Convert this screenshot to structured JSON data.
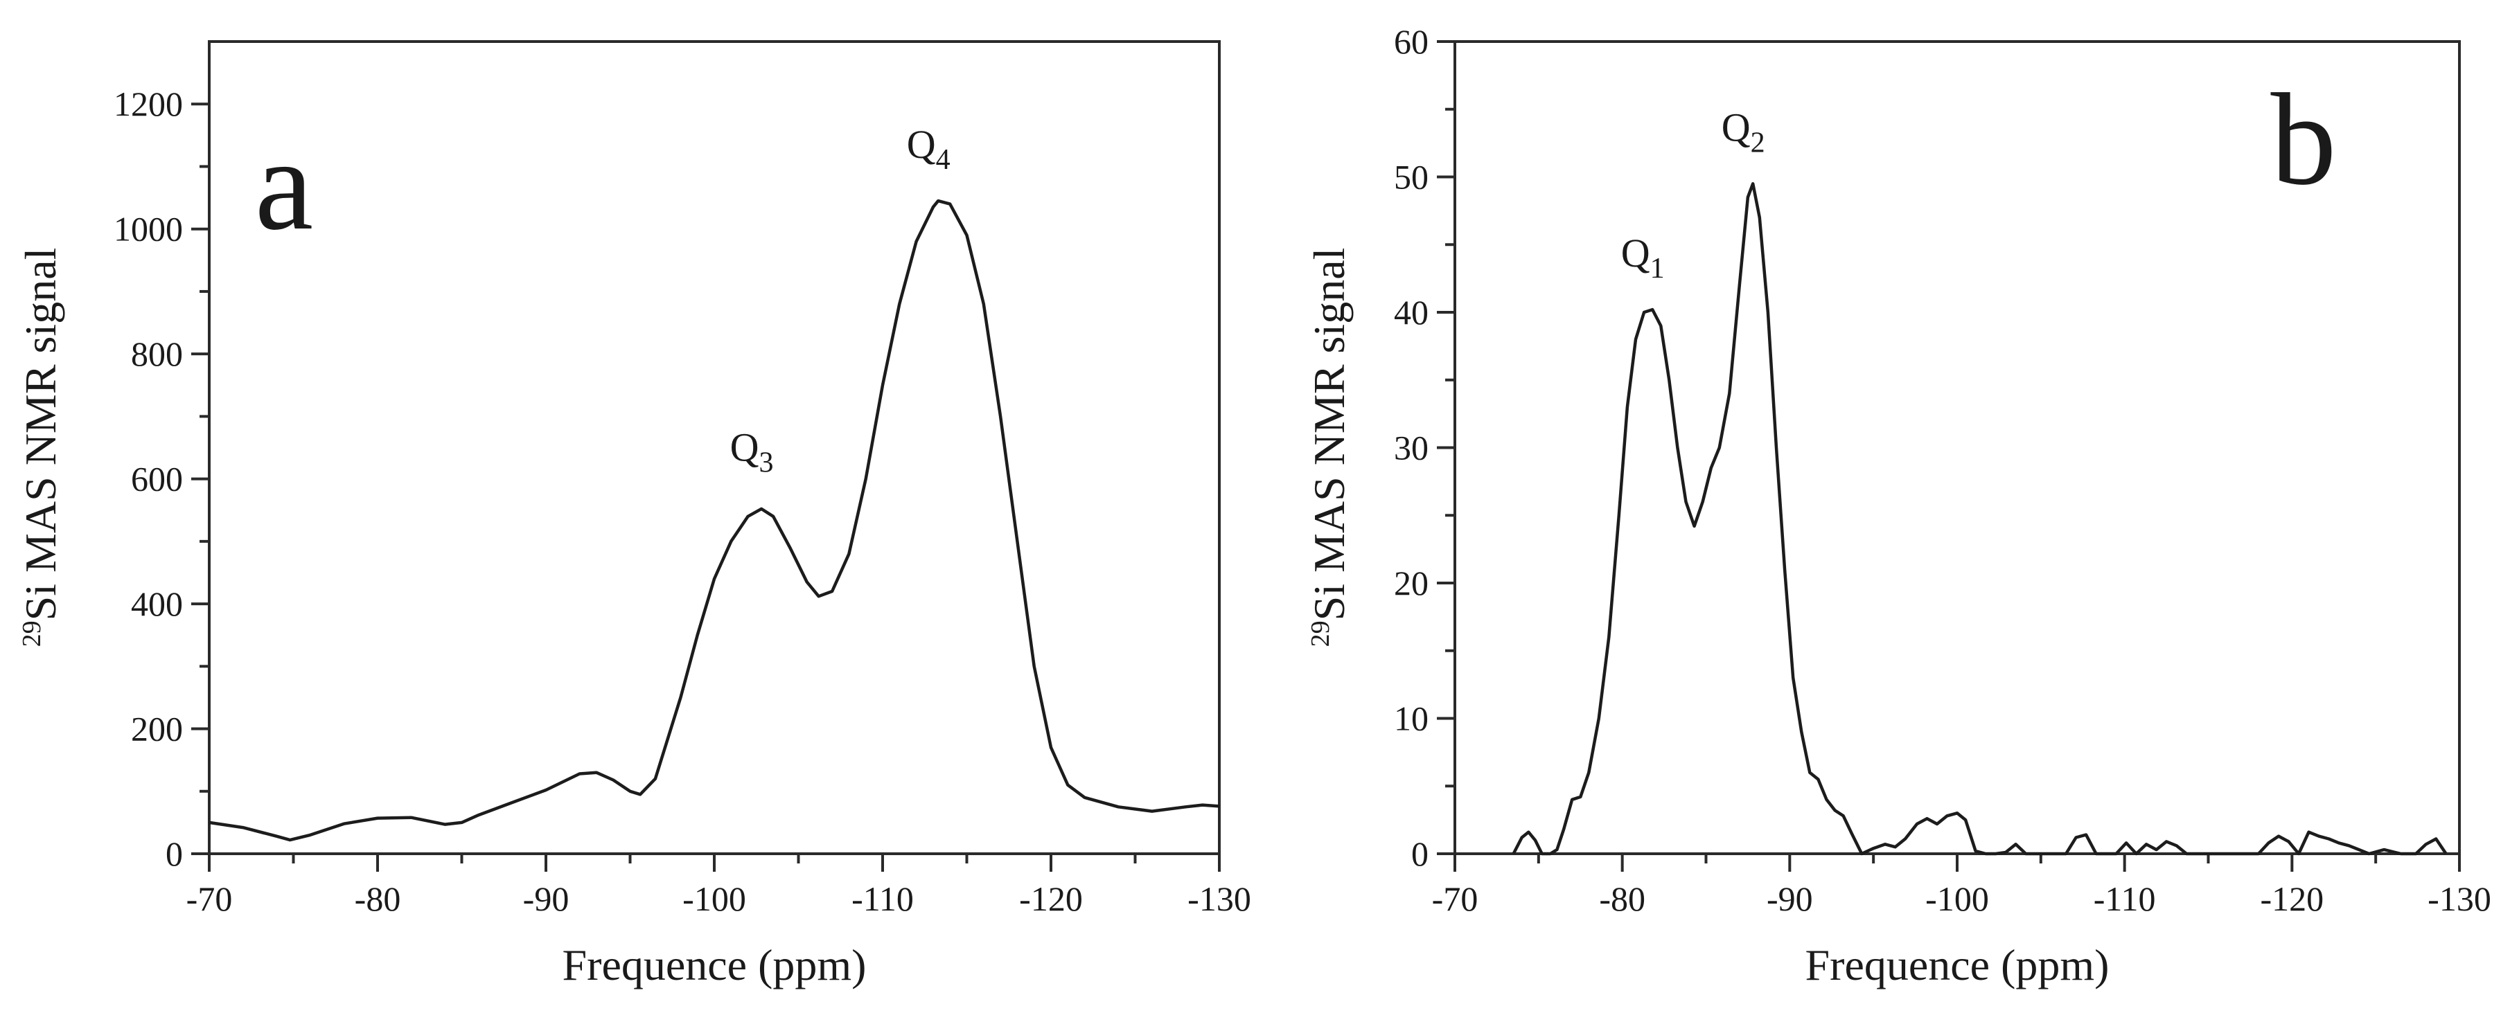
{
  "chart_data": [
    {
      "type": "line",
      "panel_label": "a",
      "xlabel": "Frequence (ppm)",
      "ylabel_sup": "29",
      "ylabel": "Si MAS NMR signal",
      "xlim": [
        -70,
        -130
      ],
      "ylim": [
        0,
        1300
      ],
      "x_ticks": [
        -70,
        -80,
        -90,
        -100,
        -110,
        -120,
        -130
      ],
      "x_tick_labels": [
        "-70",
        "-80",
        "-90",
        "-100",
        "-110",
        "-120",
        "-130"
      ],
      "y_ticks": [
        0,
        200,
        400,
        600,
        800,
        1000,
        1200
      ],
      "y_tick_labels": [
        "0",
        "200",
        "400",
        "600",
        "800",
        "1000",
        "1200"
      ],
      "annotations": [
        {
          "main": "Q",
          "sub": "3",
          "x": -102.8,
          "y": 560
        },
        {
          "main": "Q",
          "sub": "4",
          "x": -113.3,
          "y": 1045
        }
      ],
      "series": [
        {
          "name": "spectrum",
          "x": [
            -70,
            -72,
            -74,
            -74.8,
            -76,
            -78,
            -80,
            -82,
            -84,
            -85,
            -86,
            -88,
            -90,
            -92,
            -93,
            -94,
            -95,
            -95.6,
            -96.5,
            -98,
            -99,
            -100,
            -101,
            -102,
            -102.8,
            -103.5,
            -104.5,
            -105.5,
            -106.2,
            -107,
            -108,
            -109,
            -110,
            -111,
            -112,
            -113,
            -113.3,
            -114,
            -115,
            -116,
            -117,
            -118,
            -119,
            -120,
            -121,
            -122,
            -124,
            -126,
            -128,
            -129,
            -130
          ],
          "y": [
            50,
            42,
            28,
            22,
            30,
            48,
            57,
            58,
            47,
            50,
            62,
            82,
            102,
            128,
            130,
            118,
            100,
            95,
            120,
            250,
            350,
            440,
            500,
            540,
            552,
            540,
            490,
            435,
            412,
            420,
            480,
            600,
            750,
            880,
            980,
            1035,
            1045,
            1040,
            990,
            880,
            700,
            500,
            300,
            170,
            110,
            90,
            75,
            68,
            75,
            78,
            76
          ]
        }
      ]
    },
    {
      "type": "line",
      "panel_label": "b",
      "xlabel": "Frequence (ppm)",
      "ylabel_sup": "29",
      "ylabel": "Si MAS NMR signal",
      "xlim": [
        -70,
        -130
      ],
      "ylim": [
        0,
        60
      ],
      "x_ticks": [
        -70,
        -80,
        -90,
        -100,
        -110,
        -120,
        -130
      ],
      "x_tick_labels": [
        "-70",
        "-80",
        "-90",
        "-100",
        "-110",
        "-120",
        "-130"
      ],
      "y_ticks": [
        0,
        10,
        20,
        30,
        40,
        50,
        60
      ],
      "y_tick_labels": [
        "0",
        "10",
        "20",
        "30",
        "40",
        "50",
        "60"
      ],
      "annotations": [
        {
          "main": "Q",
          "sub": "1",
          "x": -81.8,
          "y": 40.2
        },
        {
          "main": "Q",
          "sub": "2",
          "x": -87.8,
          "y": 49.5
        }
      ],
      "series": [
        {
          "name": "spectrum",
          "x": [
            -73.5,
            -74,
            -74.4,
            -74.8,
            -75.2,
            -75.7,
            -76.1,
            -76.5,
            -77,
            -77.5,
            -78,
            -78.6,
            -79.2,
            -79.8,
            -80.3,
            -80.8,
            -81.3,
            -81.8,
            -82.3,
            -82.8,
            -83.3,
            -83.8,
            -84.3,
            -84.8,
            -85.3,
            -85.8,
            -86.4,
            -87,
            -87.5,
            -87.8,
            -88.2,
            -88.7,
            -89.2,
            -89.7,
            -90.2,
            -90.7,
            -91.2,
            -91.7,
            -92.2,
            -92.7,
            -93.2,
            -93.7,
            -94.3,
            -95,
            -95.7,
            -96.3,
            -96.9,
            -97.6,
            -98.2,
            -98.8,
            -99.4,
            -100,
            -100.5,
            -101.1,
            -101.7,
            -102.3,
            -102.9,
            -103.5,
            -104.1,
            -105.3,
            -106.5,
            -107.1,
            -107.7,
            -108.3,
            -109.5,
            -110.1,
            -110.7,
            -111.3,
            -111.9,
            -112.5,
            -113.1,
            -113.7,
            -114.3,
            -115,
            -118,
            -118.6,
            -119.2,
            -119.8,
            -120.4,
            -121,
            -121.6,
            -122.2,
            -122.8,
            -123.4,
            -124,
            -124.6,
            -125.5,
            -126.5,
            -127.4,
            -128,
            -128.6,
            -129.2
          ],
          "y": [
            0,
            1.2,
            1.6,
            1.0,
            0,
            0,
            0.3,
            1.8,
            4,
            4.2,
            6,
            10,
            16,
            25,
            33,
            38,
            40,
            40.2,
            39,
            35,
            30,
            26,
            24.2,
            26,
            28.5,
            30,
            34,
            42,
            48.5,
            49.5,
            47,
            40,
            30,
            21,
            13,
            9,
            6,
            5.5,
            4,
            3.2,
            2.8,
            1.5,
            0,
            0.4,
            0.7,
            0.5,
            1.1,
            2.2,
            2.6,
            2.2,
            2.8,
            3.0,
            2.5,
            0.2,
            0,
            0,
            0.1,
            0.7,
            0,
            0,
            0,
            1.2,
            1.4,
            0,
            0,
            0.8,
            0,
            0.7,
            0.3,
            0.9,
            0.6,
            0,
            0,
            0,
            0,
            0.8,
            1.3,
            0.9,
            0,
            1.6,
            1.3,
            1.1,
            0.8,
            0.6,
            0.3,
            0,
            0.3,
            0,
            0,
            0.7,
            1.1,
            0
          ]
        }
      ]
    }
  ]
}
